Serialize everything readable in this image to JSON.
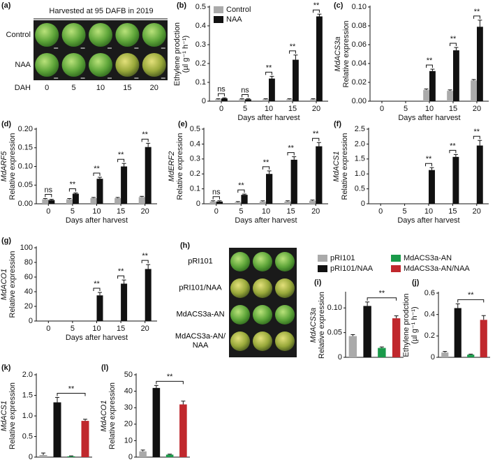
{
  "panel_a": {
    "label": "(a)",
    "title": "Harvested at 95 DAFB in 2019",
    "rows": [
      "Control",
      "NAA"
    ],
    "axis_label": "DAH",
    "columns": [
      "0",
      "5",
      "10",
      "15",
      "20"
    ]
  },
  "panel_h": {
    "label": "(h)",
    "rows": [
      "pRI101",
      "pRI101/NAA",
      "MdACS3a-AN",
      "MdACS3a-AN/\nNAA"
    ]
  },
  "chart_data": [
    {
      "type": "bar",
      "label": "(b)",
      "ylabel": [
        "Ethylene prodction",
        "(µl g⁻¹ h⁻¹)"
      ],
      "xlabel": "Days after harvest",
      "categories": [
        "0",
        "5",
        "10",
        "15",
        "20"
      ],
      "legend": "upper left",
      "series": [
        {
          "name": "Control",
          "color": "#aaaaaa",
          "values": [
            0.01,
            0.01,
            0.01,
            0.01,
            0.01
          ],
          "errors": [
            0.003,
            0.003,
            0.003,
            0.003,
            0.003
          ]
        },
        {
          "name": "NAA",
          "color": "#111111",
          "values": [
            0.015,
            0.01,
            0.12,
            0.22,
            0.45
          ],
          "errors": [
            0.003,
            0.003,
            0.012,
            0.025,
            0.012
          ]
        }
      ],
      "annotations": [
        "ns",
        "ns",
        "**",
        "**",
        "**"
      ],
      "ylim": [
        0,
        0.5
      ],
      "yticks": [
        0,
        0.1,
        0.2,
        0.3,
        0.4,
        0.5
      ]
    },
    {
      "type": "bar",
      "label": "(c)",
      "ylabel": [
        "MdACS3a",
        "Relative expression"
      ],
      "ylabel_italic_first": true,
      "xlabel": "Days after harvest",
      "categories": [
        "0",
        "5",
        "10",
        "15",
        "20"
      ],
      "series": [
        {
          "color": "#aaaaaa",
          "values": [
            0,
            0,
            0.012,
            0.011,
            0.022
          ],
          "errors": [
            0,
            0,
            0.001,
            0.001,
            0.001
          ]
        },
        {
          "color": "#111111",
          "values": [
            0,
            0,
            0.032,
            0.054,
            0.079
          ],
          "errors": [
            0,
            0,
            0.002,
            0.003,
            0.007
          ]
        }
      ],
      "annotations": [
        null,
        null,
        "**",
        "**",
        "**"
      ],
      "ylim": [
        0,
        0.1
      ],
      "yticks": [
        {
          "value": 0,
          "label": "0.00"
        },
        {
          "value": 0.02,
          "label": "0.02"
        },
        {
          "value": 0.04,
          "label": "0.04"
        },
        {
          "value": 0.06,
          "label": "0.06"
        },
        {
          "value": 0.08,
          "label": "0.08"
        },
        {
          "value": 0.1,
          "label": "0.10"
        }
      ]
    },
    {
      "type": "bar",
      "label": "(d)",
      "ylabel": [
        "MdARF5",
        "Relative expression"
      ],
      "ylabel_italic_first": true,
      "xlabel": "Days after harvest",
      "categories": [
        "0",
        "5",
        "10",
        "15",
        "20"
      ],
      "series": [
        {
          "color": "#aaaaaa",
          "values": [
            0.012,
            0.012,
            0.015,
            0.015,
            0.018
          ],
          "errors": [
            0.002,
            0.002,
            0.002,
            0.002,
            0.002
          ]
        },
        {
          "color": "#111111",
          "values": [
            0.01,
            0.027,
            0.067,
            0.1,
            0.152
          ],
          "errors": [
            0.002,
            0.002,
            0.004,
            0.008,
            0.01
          ]
        }
      ],
      "annotations": [
        "ns",
        "**",
        "**",
        "**",
        "**"
      ],
      "ylim": [
        0,
        0.2
      ],
      "yticks": [
        {
          "value": 0,
          "label": "0.00"
        },
        0.05,
        {
          "value": 0.1,
          "label": "0.10"
        },
        0.15,
        {
          "value": 0.2,
          "label": "0.20"
        }
      ]
    },
    {
      "type": "bar",
      "label": "(e)",
      "ylabel": [
        "MdERF2",
        "Relative expression"
      ],
      "ylabel_italic_first": true,
      "xlabel": "Days after harvest",
      "categories": [
        "0",
        "5",
        "10",
        "15",
        "20"
      ],
      "series": [
        {
          "color": "#aaaaaa",
          "values": [
            0.015,
            0.01,
            0.015,
            0.015,
            0.02
          ],
          "errors": [
            0.005,
            0.005,
            0.005,
            0.005,
            0.005
          ]
        },
        {
          "color": "#111111",
          "values": [
            0.015,
            0.06,
            0.2,
            0.295,
            0.385
          ],
          "errors": [
            0.005,
            0.005,
            0.02,
            0.02,
            0.025
          ]
        }
      ],
      "annotations": [
        "ns",
        "**",
        "**",
        "**",
        "**"
      ],
      "ylim": [
        0,
        0.5
      ],
      "yticks": [
        0,
        0.1,
        0.2,
        0.3,
        0.4,
        0.5
      ]
    },
    {
      "type": "bar",
      "label": "(f)",
      "ylabel": [
        "MdACS1",
        "Relative expression"
      ],
      "ylabel_italic_first": true,
      "xlabel": "Days after harvest",
      "categories": [
        "0",
        "5",
        "10",
        "15",
        "20"
      ],
      "series": [
        {
          "color": "#aaaaaa",
          "values": [
            0,
            0,
            0,
            0,
            0
          ],
          "errors": [
            0,
            0,
            0,
            0,
            0
          ]
        },
        {
          "color": "#111111",
          "values": [
            0,
            0,
            1.13,
            1.57,
            1.95
          ],
          "errors": [
            0,
            0,
            0.08,
            0.08,
            0.17
          ]
        }
      ],
      "annotations": [
        null,
        null,
        "**",
        "**",
        "**"
      ],
      "ylim": [
        0,
        2.5
      ],
      "yticks": [
        0,
        0.5,
        {
          "value": 1,
          "label": "1.0"
        },
        1.5,
        {
          "value": 2,
          "label": "2.0"
        },
        2.5
      ]
    },
    {
      "type": "bar",
      "label": "(g)",
      "ylabel": [
        "MdACO1",
        "Relative expression"
      ],
      "ylabel_italic_first": true,
      "xlabel": "Days after harvest",
      "categories": [
        "0",
        "5",
        "10",
        "15",
        "20"
      ],
      "series": [
        {
          "color": "#aaaaaa",
          "values": [
            0,
            0,
            0,
            0,
            0
          ],
          "errors": [
            0,
            0,
            0,
            0,
            0
          ]
        },
        {
          "color": "#111111",
          "values": [
            0,
            0,
            35,
            51,
            71
          ],
          "errors": [
            0,
            0,
            4,
            5,
            6
          ]
        }
      ],
      "annotations": [
        null,
        null,
        "**",
        "**",
        "**"
      ],
      "ylim": [
        0,
        100
      ],
      "yticks": [
        0,
        20,
        40,
        60,
        80,
        100
      ]
    },
    {
      "type": "bar",
      "label": "(i)",
      "ylabel": [
        "MdACS3a",
        "Relative expression"
      ],
      "ylabel_italic_first": true,
      "legend": "above",
      "categories": [
        null
      ],
      "series": [
        {
          "name": "pRI101",
          "color": "#aaaaaa",
          "values": [
            0.043
          ],
          "errors": [
            0.003
          ]
        },
        {
          "name": "pRI101/NAA",
          "color": "#111111",
          "values": [
            0.104
          ],
          "errors": [
            0.008
          ]
        },
        {
          "name": "MdACS3a-AN",
          "color": "#1a9a4a",
          "values": [
            0.019
          ],
          "errors": [
            0.002
          ]
        },
        {
          "name": "MdACS3a-AN/NAA",
          "color": "#c0282d",
          "values": [
            0.079
          ],
          "errors": [
            0.005
          ]
        }
      ],
      "annotation": "**",
      "ylim": [
        0,
        0.13
      ],
      "yticks": [
        0,
        0.05,
        {
          "value": 0.1,
          "label": "0.10"
        }
      ]
    },
    {
      "type": "bar",
      "label": "(j)",
      "ylabel": [
        "Ethylene prodction",
        "(µl g⁻¹ h⁻¹)"
      ],
      "categories": [
        null
      ],
      "series": [
        {
          "color": "#aaaaaa",
          "values": [
            0.045
          ],
          "errors": [
            0.01
          ]
        },
        {
          "color": "#111111",
          "values": [
            0.46
          ],
          "errors": [
            0.04
          ]
        },
        {
          "color": "#1a9a4a",
          "values": [
            0.025
          ],
          "errors": [
            0.005
          ]
        },
        {
          "color": "#c0282d",
          "values": [
            0.35
          ],
          "errors": [
            0.04
          ]
        }
      ],
      "annotation": "**",
      "ylim": [
        0,
        0.6
      ],
      "yticks": [
        0,
        0.2,
        0.4,
        0.6
      ]
    },
    {
      "type": "bar",
      "label": "(k)",
      "ylabel": [
        "MdACS1",
        "Relative expression"
      ],
      "ylabel_italic_first": true,
      "categories": [
        null
      ],
      "series": [
        {
          "color": "#aaaaaa",
          "values": [
            0.05
          ],
          "errors": [
            0.05
          ]
        },
        {
          "color": "#111111",
          "values": [
            1.33
          ],
          "errors": [
            0.12
          ]
        },
        {
          "color": "#1a9a4a",
          "values": [
            0.02
          ],
          "errors": [
            0.01
          ]
        },
        {
          "color": "#c0282d",
          "values": [
            0.88
          ],
          "errors": [
            0.04
          ]
        }
      ],
      "annotation": "**",
      "ylim": [
        0,
        2
      ],
      "yticks": [
        0,
        0.5,
        {
          "value": 1,
          "label": "1.0"
        },
        1.5,
        {
          "value": 2,
          "label": "2.0"
        }
      ]
    },
    {
      "type": "bar",
      "label": "(l)",
      "ylabel": [
        "MdACO1",
        "Relative expression"
      ],
      "ylabel_italic_first": true,
      "categories": [
        null
      ],
      "series": [
        {
          "color": "#aaaaaa",
          "values": [
            3.5
          ],
          "errors": [
            0.8
          ]
        },
        {
          "color": "#111111",
          "values": [
            42
          ],
          "errors": [
            1.5
          ]
        },
        {
          "color": "#1a9a4a",
          "values": [
            1.5
          ],
          "errors": [
            0.3
          ]
        },
        {
          "color": "#c0282d",
          "values": [
            32
          ],
          "errors": [
            2
          ]
        }
      ],
      "annotation": "**",
      "ylim": [
        0,
        50
      ],
      "yticks": [
        0,
        10,
        20,
        30,
        40,
        50
      ]
    }
  ]
}
